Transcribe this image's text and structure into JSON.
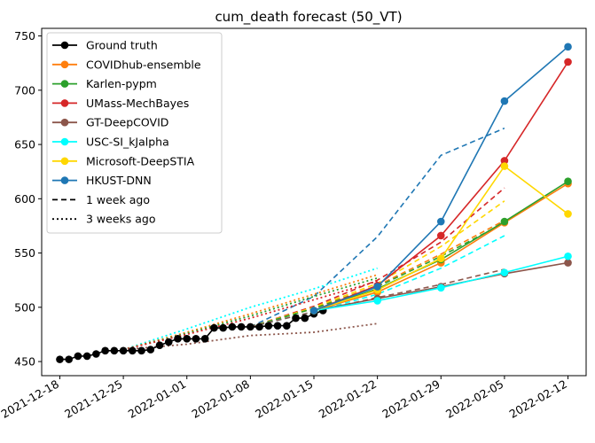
{
  "chart_data": {
    "type": "line",
    "title": "cum_death forecast (50_VT)",
    "xlabel": "",
    "ylabel": "",
    "xlim": [
      "2021-12-16",
      "2022-02-14"
    ],
    "ylim": [
      437,
      757
    ],
    "x_tick_labels": [
      "2021-12-18",
      "2021-12-25",
      "2022-01-01",
      "2022-01-08",
      "2022-01-15",
      "2022-01-22",
      "2022-01-29",
      "2022-02-05",
      "2022-02-12"
    ],
    "y_ticks": [
      450,
      500,
      550,
      600,
      650,
      700,
      750
    ],
    "grid": false,
    "legend_position": "upper left",
    "series": [
      {
        "name": "Ground truth",
        "color": "#000000",
        "style": "solid",
        "marker": true,
        "points": [
          [
            "2021-12-18",
            452
          ],
          [
            "2021-12-19",
            452
          ],
          [
            "2021-12-20",
            455
          ],
          [
            "2021-12-21",
            455
          ],
          [
            "2021-12-22",
            457
          ],
          [
            "2021-12-23",
            460
          ],
          [
            "2021-12-24",
            460
          ],
          [
            "2021-12-25",
            460
          ],
          [
            "2021-12-26",
            460
          ],
          [
            "2021-12-27",
            460
          ],
          [
            "2021-12-28",
            461
          ],
          [
            "2021-12-29",
            465
          ],
          [
            "2021-12-30",
            468
          ],
          [
            "2021-12-31",
            471
          ],
          [
            "2022-01-01",
            471
          ],
          [
            "2022-01-02",
            471
          ],
          [
            "2022-01-03",
            471
          ],
          [
            "2022-01-04",
            481
          ],
          [
            "2022-01-05",
            481
          ],
          [
            "2022-01-06",
            482
          ],
          [
            "2022-01-07",
            482
          ],
          [
            "2022-01-08",
            482
          ],
          [
            "2022-01-09",
            482
          ],
          [
            "2022-01-10",
            483
          ],
          [
            "2022-01-11",
            483
          ],
          [
            "2022-01-12",
            483
          ],
          [
            "2022-01-13",
            490
          ],
          [
            "2022-01-14",
            490
          ],
          [
            "2022-01-15",
            494
          ],
          [
            "2022-01-16",
            497
          ]
        ]
      },
      {
        "name": "COVIDhub-ensemble",
        "color": "#ff7f0e",
        "style": "solid",
        "marker": true,
        "points": [
          [
            "2022-01-15",
            497
          ],
          [
            "2022-01-22",
            514
          ],
          [
            "2022-01-29",
            541
          ],
          [
            "2022-02-05",
            578
          ],
          [
            "2022-02-12",
            614
          ]
        ]
      },
      {
        "name": "Karlen-pypm",
        "color": "#2ca02c",
        "style": "solid",
        "marker": true,
        "points": [
          [
            "2022-01-15",
            497
          ],
          [
            "2022-01-22",
            517
          ],
          [
            "2022-01-29",
            544
          ],
          [
            "2022-02-05",
            579
          ],
          [
            "2022-02-12",
            616
          ]
        ]
      },
      {
        "name": "UMass-MechBayes",
        "color": "#d62728",
        "style": "solid",
        "marker": true,
        "points": [
          [
            "2022-01-15",
            497
          ],
          [
            "2022-01-22",
            520
          ],
          [
            "2022-01-29",
            566
          ],
          [
            "2022-02-05",
            635
          ],
          [
            "2022-02-12",
            726
          ]
        ]
      },
      {
        "name": "GT-DeepCOVID",
        "color": "#8c564b",
        "style": "solid",
        "marker": true,
        "points": [
          [
            "2022-01-15",
            497
          ],
          [
            "2022-01-22",
            508
          ],
          [
            "2022-01-29",
            519
          ],
          [
            "2022-02-05",
            531
          ],
          [
            "2022-02-12",
            541
          ]
        ]
      },
      {
        "name": "USC-SI_kJalpha",
        "color": "#00ffff",
        "style": "solid",
        "marker": true,
        "points": [
          [
            "2022-01-15",
            497
          ],
          [
            "2022-01-22",
            506
          ],
          [
            "2022-01-29",
            518
          ],
          [
            "2022-02-05",
            532
          ],
          [
            "2022-02-12",
            547
          ]
        ]
      },
      {
        "name": "Microsoft-DeepSTIA",
        "color": "#ffd700",
        "style": "solid",
        "marker": true,
        "points": [
          [
            "2022-01-15",
            497
          ],
          [
            "2022-01-22",
            516
          ],
          [
            "2022-01-29",
            545
          ],
          [
            "2022-02-05",
            630
          ],
          [
            "2022-02-12",
            586
          ]
        ]
      },
      {
        "name": "HKUST-DNN",
        "color": "#1f77b4",
        "style": "solid",
        "marker": true,
        "points": [
          [
            "2022-01-15",
            497
          ],
          [
            "2022-01-22",
            519
          ],
          [
            "2022-01-29",
            579
          ],
          [
            "2022-02-05",
            690
          ],
          [
            "2022-02-12",
            740
          ]
        ]
      },
      {
        "color": "#1f77b4",
        "style": "dashed",
        "marker": false,
        "points": [
          [
            "2022-01-08",
            482
          ],
          [
            "2022-01-15",
            510
          ],
          [
            "2022-01-22",
            565
          ],
          [
            "2022-01-29",
            640
          ],
          [
            "2022-02-05",
            665
          ]
        ]
      },
      {
        "color": "#d62728",
        "style": "dashed",
        "marker": false,
        "points": [
          [
            "2022-01-08",
            482
          ],
          [
            "2022-01-15",
            501
          ],
          [
            "2022-01-22",
            525
          ],
          [
            "2022-01-29",
            560
          ],
          [
            "2022-02-05",
            610
          ]
        ]
      },
      {
        "color": "#ffd700",
        "style": "dashed",
        "marker": false,
        "points": [
          [
            "2022-01-08",
            482
          ],
          [
            "2022-01-15",
            500
          ],
          [
            "2022-01-22",
            522
          ],
          [
            "2022-01-29",
            556
          ],
          [
            "2022-02-05",
            598
          ]
        ]
      },
      {
        "color": "#ff7f0e",
        "style": "dashed",
        "marker": false,
        "points": [
          [
            "2022-01-08",
            482
          ],
          [
            "2022-01-15",
            499
          ],
          [
            "2022-01-22",
            520
          ],
          [
            "2022-01-29",
            549
          ],
          [
            "2022-02-05",
            580
          ]
        ]
      },
      {
        "color": "#2ca02c",
        "style": "dashed",
        "marker": false,
        "points": [
          [
            "2022-01-08",
            482
          ],
          [
            "2022-01-15",
            499
          ],
          [
            "2022-01-22",
            519
          ],
          [
            "2022-01-29",
            547
          ],
          [
            "2022-02-05",
            578
          ]
        ]
      },
      {
        "color": "#00ffff",
        "style": "dashed",
        "marker": false,
        "points": [
          [
            "2022-01-08",
            482
          ],
          [
            "2022-01-15",
            496
          ],
          [
            "2022-01-22",
            512
          ],
          [
            "2022-01-29",
            536
          ],
          [
            "2022-02-05",
            566
          ]
        ]
      },
      {
        "color": "#8c564b",
        "style": "dashed",
        "marker": false,
        "points": [
          [
            "2022-01-08",
            482
          ],
          [
            "2022-01-15",
            496
          ],
          [
            "2022-01-22",
            509
          ],
          [
            "2022-01-29",
            521
          ],
          [
            "2022-02-05",
            535
          ]
        ]
      },
      {
        "color": "#00ffff",
        "style": "dotted",
        "marker": false,
        "points": [
          [
            "2021-12-25",
            461
          ],
          [
            "2022-01-01",
            480
          ],
          [
            "2022-01-08",
            500
          ],
          [
            "2022-01-15",
            517
          ],
          [
            "2022-01-22",
            536
          ]
        ]
      },
      {
        "color": "#ff7f0e",
        "style": "dotted",
        "marker": false,
        "points": [
          [
            "2021-12-25",
            461
          ],
          [
            "2022-01-01",
            477
          ],
          [
            "2022-01-08",
            494
          ],
          [
            "2022-01-15",
            512
          ],
          [
            "2022-01-22",
            530
          ]
        ]
      },
      {
        "color": "#2ca02c",
        "style": "dotted",
        "marker": false,
        "points": [
          [
            "2021-12-25",
            461
          ],
          [
            "2022-01-01",
            476
          ],
          [
            "2022-01-08",
            492
          ],
          [
            "2022-01-15",
            510
          ],
          [
            "2022-01-22",
            527
          ]
        ]
      },
      {
        "color": "#d62728",
        "style": "dotted",
        "marker": false,
        "points": [
          [
            "2021-12-25",
            461
          ],
          [
            "2022-01-01",
            475
          ],
          [
            "2022-01-08",
            490
          ],
          [
            "2022-01-15",
            507
          ],
          [
            "2022-01-22",
            524
          ]
        ]
      },
      {
        "color": "#8c564b",
        "style": "dotted",
        "marker": false,
        "points": [
          [
            "2021-12-25",
            461
          ],
          [
            "2022-01-01",
            466
          ],
          [
            "2022-01-08",
            474
          ],
          [
            "2022-01-15",
            477
          ],
          [
            "2022-01-22",
            485
          ]
        ]
      }
    ],
    "legend": [
      {
        "label": "Ground truth",
        "color": "#000000",
        "style": "solid",
        "marker": true
      },
      {
        "label": "COVIDhub-ensemble",
        "color": "#ff7f0e",
        "style": "solid",
        "marker": true
      },
      {
        "label": "Karlen-pypm",
        "color": "#2ca02c",
        "style": "solid",
        "marker": true
      },
      {
        "label": "UMass-MechBayes",
        "color": "#d62728",
        "style": "solid",
        "marker": true
      },
      {
        "label": "GT-DeepCOVID",
        "color": "#8c564b",
        "style": "solid",
        "marker": true
      },
      {
        "label": "USC-SI_kJalpha",
        "color": "#00ffff",
        "style": "solid",
        "marker": true
      },
      {
        "label": "Microsoft-DeepSTIA",
        "color": "#ffd700",
        "style": "solid",
        "marker": true
      },
      {
        "label": "HKUST-DNN",
        "color": "#1f77b4",
        "style": "solid",
        "marker": true
      },
      {
        "label": "1 week ago",
        "color": "#000000",
        "style": "dashed",
        "marker": false
      },
      {
        "label": "3 weeks ago",
        "color": "#000000",
        "style": "dotted",
        "marker": false
      }
    ]
  }
}
